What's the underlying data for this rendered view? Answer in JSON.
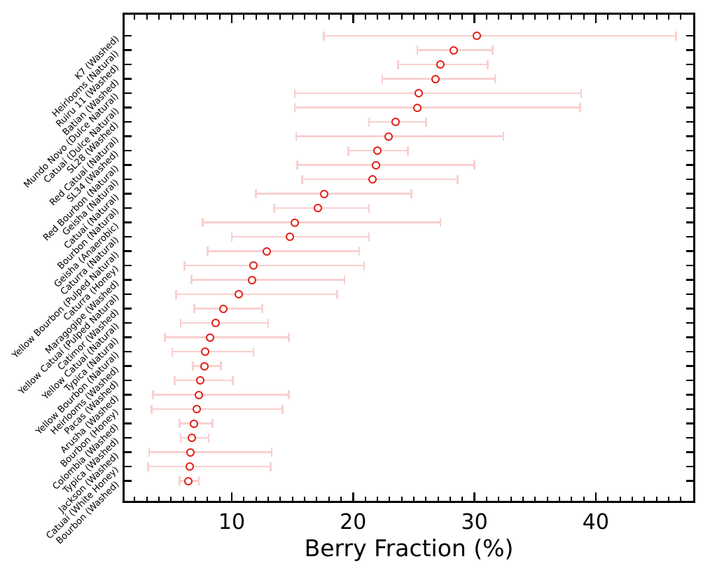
{
  "chart_data": {
    "type": "scatter",
    "subtype": "horizontal-errorbar",
    "title": "",
    "xlabel": "Berry Fraction (%)",
    "ylabel": "",
    "xlim": [
      1,
      48.2
    ],
    "x_major_ticks": [
      10,
      20,
      30,
      40
    ],
    "x_minor_tick_step": 1,
    "grid": false,
    "legend_position": "none",
    "series": [
      {
        "name": "berry_fraction",
        "marker": "open-circle",
        "points": [
          {
            "label": "K7 (Washed)",
            "value": 30.2,
            "err_low": 17.6,
            "err_high": 46.6
          },
          {
            "label": "Heirlooms (Natural)",
            "value": 28.3,
            "err_low": 25.3,
            "err_high": 31.5
          },
          {
            "label": "Ruiru 11 (Washed)",
            "value": 27.2,
            "err_low": 23.7,
            "err_high": 31.1
          },
          {
            "label": "Batian (Washed)",
            "value": 26.8,
            "err_low": 22.4,
            "err_high": 31.7
          },
          {
            "label": "Mundo Novo (Dulce Natural)",
            "value": 25.4,
            "err_low": 15.2,
            "err_high": 38.8
          },
          {
            "label": "Catuaí (Dulce Natural)",
            "value": 25.3,
            "err_low": 15.2,
            "err_high": 38.7
          },
          {
            "label": "SL28 (Washed)",
            "value": 23.5,
            "err_low": 21.3,
            "err_high": 26.0
          },
          {
            "label": "Red Catuaí (Natural)",
            "value": 22.9,
            "err_low": 15.3,
            "err_high": 32.4
          },
          {
            "label": "SL34 (Washed)",
            "value": 22.0,
            "err_low": 19.6,
            "err_high": 24.5
          },
          {
            "label": "Red Bourbon (Natural)",
            "value": 21.9,
            "err_low": 15.4,
            "err_high": 30.0
          },
          {
            "label": "Geisha (Natural)",
            "value": 21.6,
            "err_low": 15.8,
            "err_high": 28.6
          },
          {
            "label": "Catuaí (Natural)",
            "value": 17.6,
            "err_low": 12.0,
            "err_high": 24.8
          },
          {
            "label": "Bourbon (Natural)",
            "value": 17.1,
            "err_low": 13.5,
            "err_high": 21.3
          },
          {
            "label": "Geisha (Anaerobic)",
            "value": 15.2,
            "err_low": 7.6,
            "err_high": 27.2
          },
          {
            "label": "Caturra (Natural)",
            "value": 14.8,
            "err_low": 10.0,
            "err_high": 21.3
          },
          {
            "label": "Yellow Bourbon (Pulped Natural)",
            "value": 12.9,
            "err_low": 8.0,
            "err_high": 20.5
          },
          {
            "label": "Caturra (Honey)",
            "value": 11.8,
            "err_low": 6.1,
            "err_high": 20.9
          },
          {
            "label": "Maragogipe (Washed)",
            "value": 11.7,
            "err_low": 6.7,
            "err_high": 19.3
          },
          {
            "label": "Yellow Catuaí (Pulped Natural)",
            "value": 10.6,
            "err_low": 5.4,
            "err_high": 18.7
          },
          {
            "label": "Catimor (Washed)",
            "value": 9.3,
            "err_low": 6.9,
            "err_high": 12.5
          },
          {
            "label": "Yellow Catuaí (Natural)",
            "value": 8.7,
            "err_low": 5.8,
            "err_high": 13.0
          },
          {
            "label": "Typica (Natural)",
            "value": 8.2,
            "err_low": 4.5,
            "err_high": 14.7
          },
          {
            "label": "Yellow Bourbon (Natural)",
            "value": 7.8,
            "err_low": 5.1,
            "err_high": 11.8
          },
          {
            "label": "Heirlooms (Washed)",
            "value": 7.75,
            "err_low": 6.8,
            "err_high": 9.1
          },
          {
            "label": "Pacas (Washed)",
            "value": 7.4,
            "err_low": 5.3,
            "err_high": 10.1
          },
          {
            "label": "Arusha (Washed)",
            "value": 7.3,
            "err_low": 3.5,
            "err_high": 14.7
          },
          {
            "label": "Bourbon (Honey)",
            "value": 7.1,
            "err_low": 3.4,
            "err_high": 14.2
          },
          {
            "label": "Colombia (Washed)",
            "value": 6.9,
            "err_low": 5.7,
            "err_high": 8.4
          },
          {
            "label": "Typica (Washed)",
            "value": 6.7,
            "err_low": 5.8,
            "err_high": 8.1
          },
          {
            "label": "Jackson (Washed)",
            "value": 6.6,
            "err_low": 3.2,
            "err_high": 13.3
          },
          {
            "label": "Catuaí (White Honey)",
            "value": 6.55,
            "err_low": 3.1,
            "err_high": 13.2
          },
          {
            "label": "Bourbon (Washed)",
            "value": 6.45,
            "err_low": 5.7,
            "err_high": 7.3
          }
        ]
      }
    ],
    "colors": {
      "marker": "#e32119",
      "errorbar": "#f9d0d0",
      "axis": "#000000",
      "background": "#ffffff"
    }
  }
}
